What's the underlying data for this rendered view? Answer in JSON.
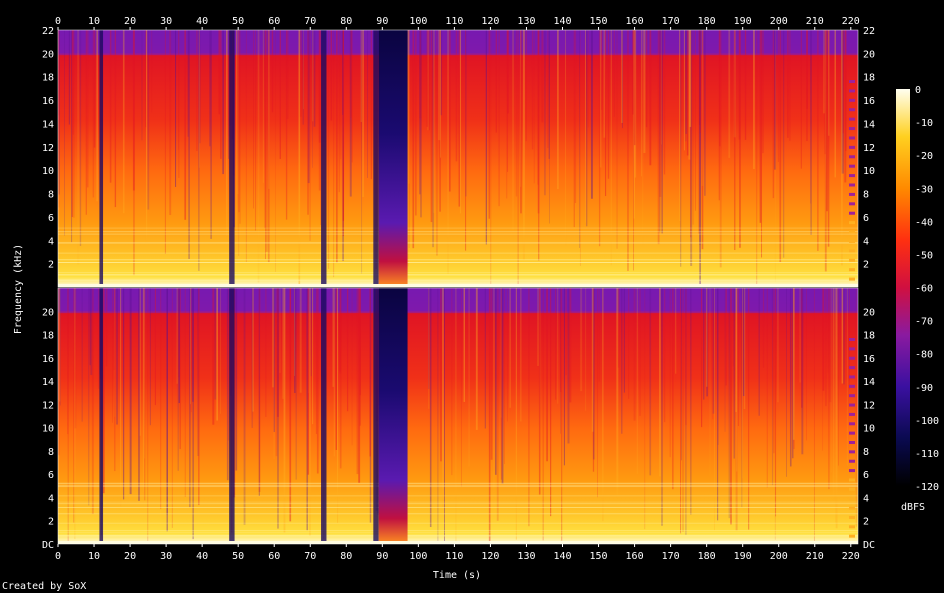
{
  "chart_data": {
    "type": "heatmap",
    "xlabel": "Time (s)",
    "ylabel": "Frequency (kHz)",
    "xlim": [
      0,
      222
    ],
    "ylim": [
      0,
      22
    ],
    "x_ticks": [
      "0",
      "10",
      "20",
      "30",
      "40",
      "50",
      "60",
      "70",
      "80",
      "90",
      "100",
      "110",
      "120",
      "130",
      "140",
      "150",
      "160",
      "170",
      "180",
      "190",
      "200",
      "210",
      "220"
    ],
    "y_ticks_top": [
      "2",
      "4",
      "6",
      "8",
      "10",
      "12",
      "14",
      "16",
      "18",
      "20",
      "22"
    ],
    "y_ticks_bottom": [
      "DC",
      "2",
      "4",
      "6",
      "8",
      "10",
      "12",
      "14",
      "16",
      "18",
      "20"
    ],
    "channels": 2,
    "quiet_segments_s": [
      [
        11.5,
        12.5
      ],
      [
        47.5,
        49
      ],
      [
        73,
        74.5
      ],
      [
        87.5,
        89
      ],
      [
        89,
        97
      ]
    ],
    "lowpass_khz": 20,
    "colorbar": {
      "label": "dBFS",
      "ticks": [
        "0",
        "-10",
        "-20",
        "-30",
        "-40",
        "-50",
        "-60",
        "-70",
        "-80",
        "-90",
        "-100",
        "-110",
        "-120"
      ],
      "range": [
        -120,
        0
      ]
    },
    "colors": {
      "hot": "#ffffff",
      "yellow": "#ffe040",
      "orange": "#ff9a00",
      "red": "#e01020",
      "purple": "#8a1aa0",
      "dark_blue": "#1a0a60",
      "black": "#000000"
    }
  },
  "footer": {
    "created_by": "Created by SoX"
  }
}
